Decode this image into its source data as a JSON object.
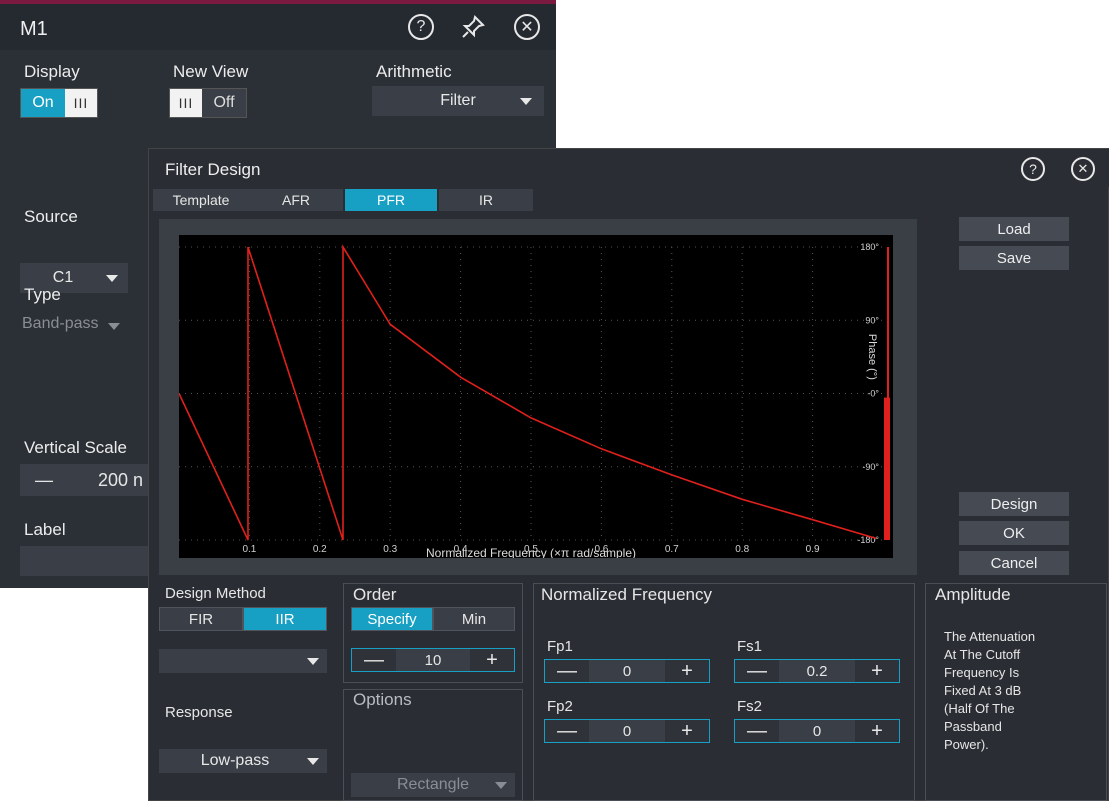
{
  "m1": {
    "title": "M1",
    "display": {
      "label": "Display",
      "on": "On",
      "handle": "III"
    },
    "new_view": {
      "label": "New View",
      "handle": "III",
      "off": "Off"
    },
    "arithmetic": {
      "label": "Arithmetic",
      "value": "Filter"
    },
    "source": {
      "label": "Source",
      "value": "C1"
    },
    "type": {
      "label": "Type",
      "value": "Band-pass"
    },
    "vertical_scale": {
      "label": "Vertical Scale",
      "minus": "—",
      "value": "200 n"
    },
    "label": {
      "label": "Label"
    }
  },
  "filter_design": {
    "title": "Filter Design",
    "tabs": [
      "Template",
      "AFR",
      "PFR",
      "IR"
    ],
    "active_tab": "PFR",
    "side_buttons": {
      "load": "Load",
      "save": "Save",
      "design": "Design",
      "ok": "OK",
      "cancel": "Cancel"
    },
    "design_method": {
      "label": "Design Method",
      "options": [
        "FIR",
        "IIR"
      ],
      "selected": "IIR"
    },
    "order": {
      "label": "Order",
      "options": [
        "Specify",
        "Min"
      ],
      "selected": "Specify",
      "value": "10"
    },
    "response": {
      "label": "Response",
      "value": "Low-pass"
    },
    "options": {
      "label": "Options",
      "window": "Rectangle"
    },
    "normalized_frequency": {
      "label": "Normalized Frequency",
      "fp1": {
        "label": "Fp1",
        "value": "0"
      },
      "fs1": {
        "label": "Fs1",
        "value": "0.2"
      },
      "fp2": {
        "label": "Fp2",
        "value": "0"
      },
      "fs2": {
        "label": "Fs2",
        "value": "0"
      }
    },
    "amplitude": {
      "label": "Amplitude",
      "text_lines": [
        "The Attenuation",
        "At The Cutoff",
        "Frequency Is",
        "Fixed At 3 dB",
        "(Half Of The",
        "Passband",
        "Power)."
      ]
    },
    "stepper_symbols": {
      "minus": "—",
      "plus": "+"
    }
  },
  "chart_data": {
    "type": "line",
    "xlabel": "Normalized Frequency (×π rad/sample)",
    "ylabel": "Phase (°)",
    "x_ticks": [
      "0.1",
      "0.2",
      "0.3",
      "0.4",
      "0.5",
      "0.6",
      "0.7",
      "0.8",
      "0.9"
    ],
    "y_ticks": [
      "180°",
      "90°",
      "-0°",
      "-90°",
      "-180°"
    ],
    "xlim": [
      0,
      1
    ],
    "ylim": [
      -180,
      180
    ],
    "grid": true,
    "line_color": "#e0201c",
    "series": [
      {
        "x": [
          0.0,
          0.098,
          0.098,
          0.233,
          0.233,
          0.3,
          0.4,
          0.5,
          0.6,
          0.7,
          0.8,
          0.9,
          0.99
        ],
        "y": [
          0,
          -180,
          180,
          -180,
          180,
          85,
          20,
          -30,
          -68,
          -100,
          -130,
          -155,
          -178
        ]
      }
    ]
  },
  "colors": {
    "accent": "#18a0c4",
    "trace": "#e0201c",
    "dialog_bg": "#2a2e34"
  }
}
